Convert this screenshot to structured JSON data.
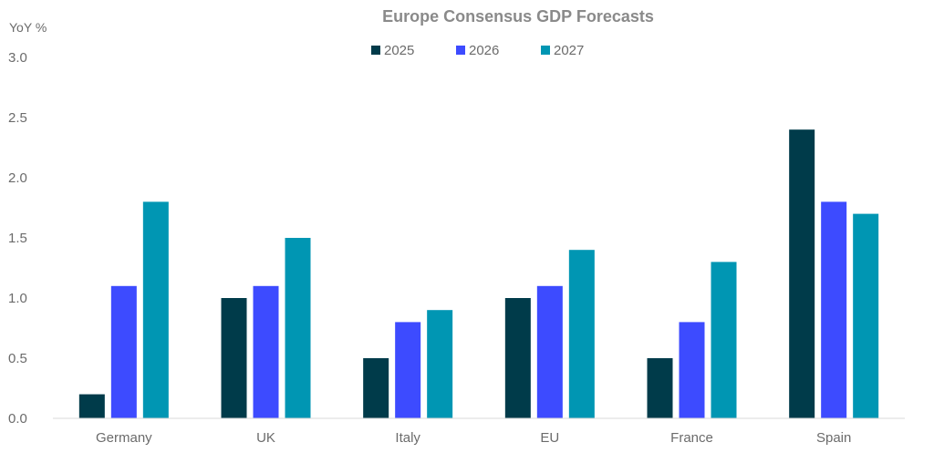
{
  "chart_data": {
    "type": "bar",
    "title": "Europe Consensus GDP Forecasts",
    "ylabel": "YoY %",
    "xlabel": "",
    "categories": [
      "Germany",
      "UK",
      "Italy",
      "EU",
      "France",
      "Spain"
    ],
    "series": [
      {
        "name": "2025",
        "color": "#003b4a",
        "values": [
          0.2,
          1.0,
          0.5,
          1.0,
          0.5,
          2.4
        ]
      },
      {
        "name": "2026",
        "color": "#3d4bff",
        "values": [
          1.1,
          1.1,
          0.8,
          1.1,
          0.8,
          1.8
        ]
      },
      {
        "name": "2027",
        "color": "#0096b3",
        "values": [
          1.8,
          1.5,
          0.9,
          1.4,
          1.3,
          1.7
        ]
      }
    ],
    "yticks": [
      "0.0",
      "0.5",
      "1.0",
      "1.5",
      "2.0",
      "2.5",
      "3.0"
    ],
    "ylim": [
      0,
      3.0
    ],
    "grid": false,
    "legend_position": "top-center"
  }
}
